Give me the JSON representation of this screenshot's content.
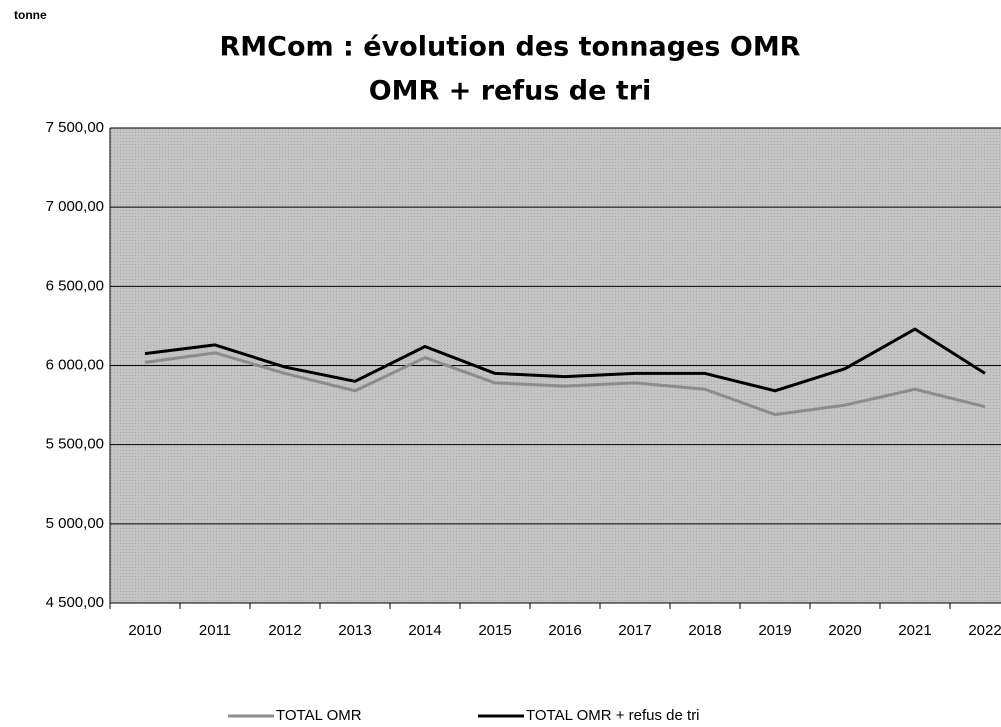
{
  "chart_data": {
    "type": "line",
    "title": "RMCom : évolution des tonnages OMR",
    "subtitle": "OMR + refus de tri",
    "y_label": "tonne",
    "categories": [
      "2010",
      "2011",
      "2012",
      "2013",
      "2014",
      "2015",
      "2016",
      "2017",
      "2018",
      "2019",
      "2020",
      "2021",
      "2022"
    ],
    "series": [
      {
        "name": "TOTAL OMR",
        "color": "#8c8c8c",
        "values": [
          6020,
          6080,
          5950,
          5840,
          6050,
          5890,
          5870,
          5890,
          5850,
          5690,
          5750,
          5850,
          5740
        ]
      },
      {
        "name": "TOTAL OMR + refus de tri",
        "color": "#000000",
        "values": [
          6075,
          6130,
          5990,
          5900,
          6120,
          5950,
          5930,
          5950,
          5950,
          5840,
          5980,
          6230,
          5950
        ]
      }
    ],
    "ylim": [
      4500,
      7500
    ],
    "yticks": [
      {
        "value": 4500,
        "label": "4 500,00"
      },
      {
        "value": 5000,
        "label": "5 000,00"
      },
      {
        "value": 5500,
        "label": "5 500,00"
      },
      {
        "value": 6000,
        "label": "6 000,00"
      },
      {
        "value": 6500,
        "label": "6 500,00"
      },
      {
        "value": 7000,
        "label": "7 000,00"
      },
      {
        "value": 7500,
        "label": "7 500,00"
      }
    ],
    "grid": true,
    "legend": "bottom"
  }
}
